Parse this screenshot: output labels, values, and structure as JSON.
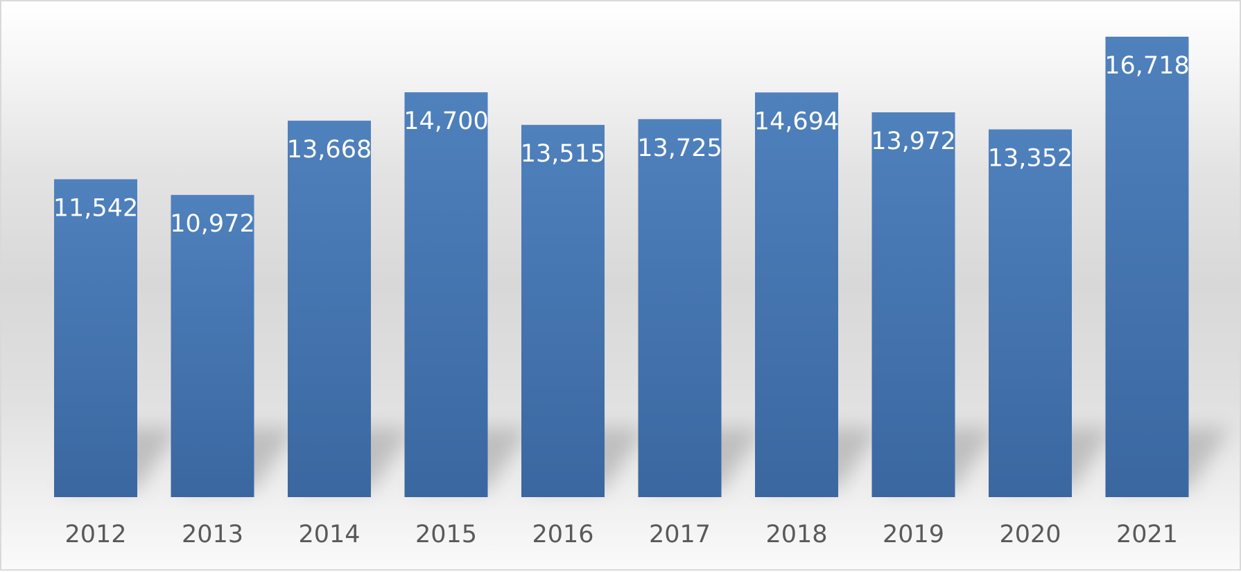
{
  "chart_data": {
    "type": "bar",
    "categories": [
      "2012",
      "2013",
      "2014",
      "2015",
      "2016",
      "2017",
      "2018",
      "2019",
      "2020",
      "2021"
    ],
    "values": [
      11542,
      10972,
      13668,
      14700,
      13515,
      13725,
      14694,
      13972,
      13352,
      16718
    ],
    "data_labels": [
      "11,542",
      "10,972",
      "13,668",
      "14,700",
      "13,515",
      "13,725",
      "14,694",
      "13,972",
      "13,352",
      "16,718"
    ],
    "title": "",
    "xlabel": "",
    "ylabel": "",
    "ylim": [
      0,
      18000
    ],
    "grid": false,
    "legend": "none",
    "colors": {
      "bar_top": "#4f81bd",
      "bar_bottom": "#3a67a0",
      "data_label": "#ffffff",
      "category_label": "#595959"
    }
  }
}
